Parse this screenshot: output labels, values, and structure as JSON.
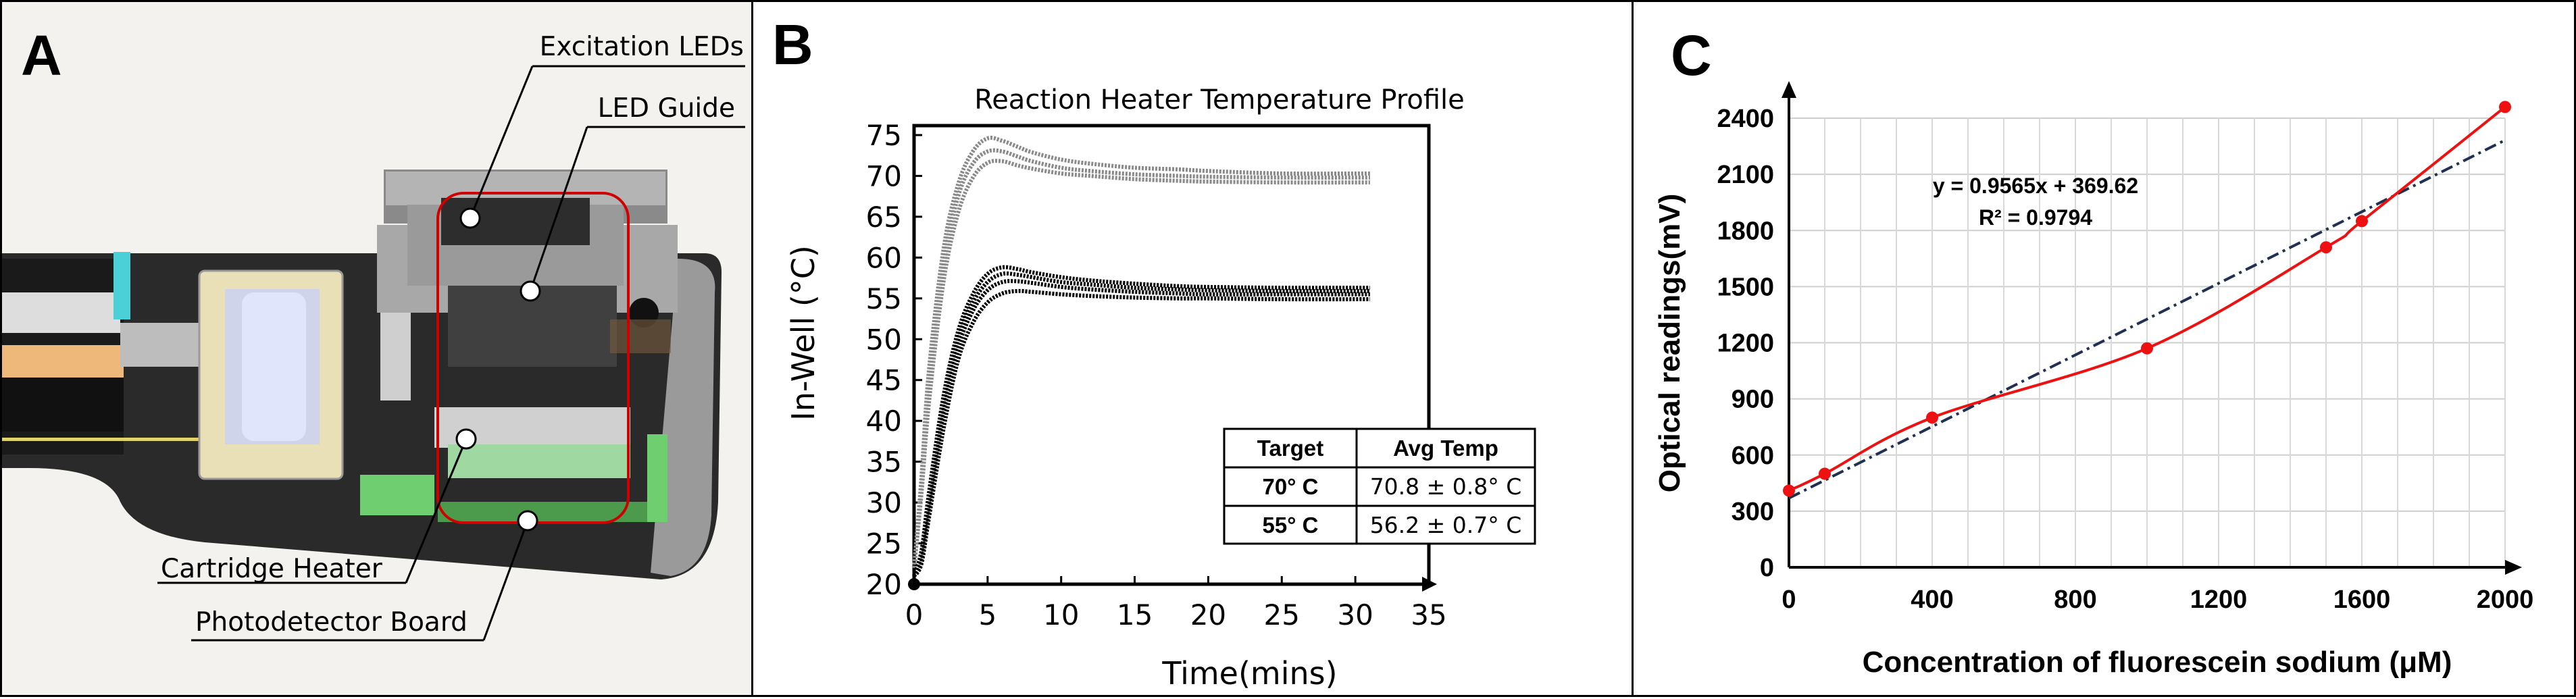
{
  "panel_a": {
    "letter": "A",
    "callouts": {
      "excitation_leds": "Excitation LEDs",
      "led_guide": "LED Guide",
      "cartridge_heater": "Cartridge Heater",
      "photodetector_board": "Photodetector Board"
    }
  },
  "panel_b": {
    "letter": "B",
    "table": {
      "headers": [
        "Target",
        "Avg Temp"
      ],
      "rows": [
        [
          "70° C",
          "70.8 ± 0.8° C"
        ],
        [
          "55° C",
          "56.2 ± 0.7° C"
        ]
      ]
    }
  },
  "panel_c": {
    "letter": "C",
    "equation": "y = 0.9565x + 369.62",
    "r_squared": "R² = 0.9794"
  },
  "chart_data": [
    {
      "type": "line",
      "title": "Reaction Heater Temperature Profile",
      "xlabel": "Time(mins)",
      "ylabel": "In-Well (°C)",
      "xlim": [
        0,
        35
      ],
      "ylim": [
        20,
        75
      ],
      "xticks": [
        0,
        5,
        10,
        15,
        20,
        25,
        30,
        35
      ],
      "yticks": [
        20,
        25,
        30,
        35,
        40,
        45,
        50,
        55,
        60,
        65,
        70,
        75
      ],
      "grid": false,
      "series": [
        {
          "color": "#8a8a8a",
          "x": [
            0,
            0.5,
            1,
            2,
            3,
            4,
            5,
            6,
            7,
            8,
            10,
            12,
            15,
            18,
            20,
            25,
            31
          ],
          "y": [
            22,
            33,
            46,
            61,
            69,
            73,
            74.6,
            74.3,
            73.6,
            72.9,
            72,
            71.5,
            71,
            70.8,
            70.6,
            70.3,
            70.3
          ]
        },
        {
          "color": "#8a8a8a",
          "x": [
            0,
            0.5,
            1,
            2,
            3,
            4,
            5,
            6,
            7,
            8,
            10,
            12,
            15,
            18,
            20,
            25,
            31
          ],
          "y": [
            22,
            32,
            44,
            59,
            67.5,
            71.5,
            73,
            73,
            72.4,
            71.8,
            71,
            70.6,
            70.2,
            70,
            69.9,
            69.8,
            69.8
          ]
        },
        {
          "color": "#8a8a8a",
          "x": [
            0,
            0.5,
            1,
            2,
            3,
            4,
            5,
            6,
            7,
            8,
            10,
            12,
            15,
            18,
            20,
            25,
            31
          ],
          "y": [
            22,
            31,
            42,
            57,
            65.5,
            69.8,
            71.6,
            71.8,
            71.3,
            70.9,
            70.3,
            70,
            69.6,
            69.4,
            69.3,
            69.2,
            69.2
          ]
        },
        {
          "color": "#000000",
          "x": [
            0,
            0.5,
            1,
            2,
            3,
            4,
            5,
            6,
            7,
            8,
            10,
            12,
            15,
            18,
            20,
            25,
            31
          ],
          "y": [
            21,
            24,
            31,
            43,
            51,
            55.5,
            58,
            58.8,
            58.6,
            58.2,
            57.6,
            57.2,
            56.8,
            56.5,
            56.4,
            56.3,
            56.3
          ]
        },
        {
          "color": "#000000",
          "x": [
            0,
            0.5,
            1,
            2,
            3,
            4,
            5,
            6,
            7,
            8,
            10,
            12,
            15,
            18,
            20,
            25,
            31
          ],
          "y": [
            21,
            24,
            30,
            42,
            50,
            54.5,
            57,
            58,
            57.9,
            57.6,
            57,
            56.7,
            56.3,
            56.1,
            56,
            55.9,
            55.9
          ]
        },
        {
          "color": "#000000",
          "x": [
            0,
            0.5,
            1,
            2,
            3,
            4,
            5,
            6,
            7,
            8,
            10,
            12,
            15,
            18,
            20,
            25,
            31
          ],
          "y": [
            21,
            23,
            29,
            41,
            49,
            53.5,
            56,
            57,
            57.1,
            56.9,
            56.4,
            56.1,
            55.8,
            55.6,
            55.5,
            55.5,
            55.5
          ]
        },
        {
          "color": "#000000",
          "x": [
            0,
            0.5,
            1,
            2,
            3,
            4,
            5,
            6,
            7,
            8,
            10,
            12,
            15,
            18,
            20,
            25,
            31
          ],
          "y": [
            21,
            22.5,
            28,
            39,
            47.5,
            52,
            54.5,
            55.6,
            55.9,
            55.8,
            55.5,
            55.3,
            55.1,
            55,
            55,
            54.9,
            54.9
          ]
        }
      ]
    },
    {
      "type": "scatter",
      "xlabel": "Concentration of fluorescein sodium (μM)",
      "ylabel": "Optical readings(mV)",
      "xlim": [
        0,
        2000
      ],
      "ylim": [
        0,
        2400
      ],
      "xticks": [
        0,
        400,
        800,
        1200,
        1600,
        2000
      ],
      "yticks": [
        0,
        300,
        600,
        900,
        1200,
        1500,
        1800,
        2100,
        2400
      ],
      "grid": true,
      "series": [
        {
          "color": "#ee1111",
          "x": [
            0,
            100,
            400,
            1000,
            1500,
            1600,
            2000
          ],
          "y": [
            410,
            500,
            800,
            1170,
            1710,
            1850,
            2460
          ]
        }
      ],
      "trendline": {
        "slope": 0.9565,
        "intercept": 369.62,
        "color": "#1f3050",
        "style": "dash-dot"
      }
    }
  ]
}
